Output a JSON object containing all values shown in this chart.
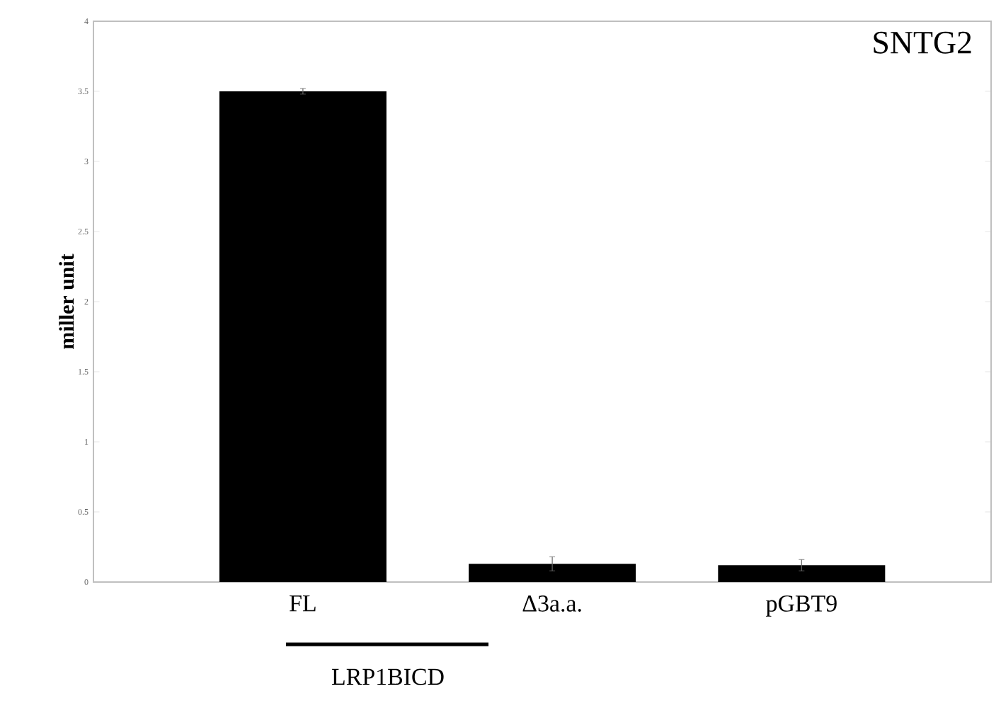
{
  "chart_data": {
    "type": "bar",
    "title": "SNTG2",
    "ylabel": "miller unit",
    "categories": [
      "FL",
      "Δ3a.a.",
      "pGBT9"
    ],
    "values": [
      3.5,
      0.13,
      0.12
    ],
    "errors": [
      0.02,
      0.05,
      0.04
    ],
    "color": "#000000",
    "ylim": [
      0,
      4
    ],
    "yticks": [
      0,
      0.5,
      1,
      1.5,
      2,
      2.5,
      3,
      3.5,
      4
    ],
    "annotations": [
      "LRP1BICD"
    ]
  }
}
